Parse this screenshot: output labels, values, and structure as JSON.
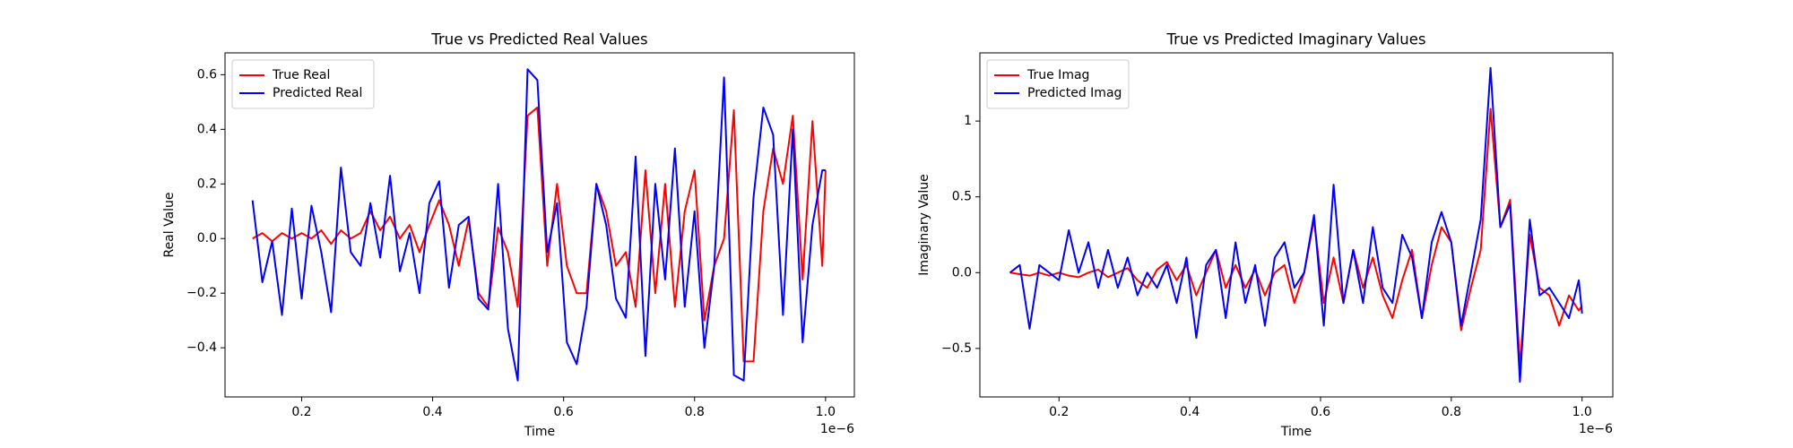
{
  "chart_data": [
    {
      "type": "line",
      "title": "True vs Predicted Real Values",
      "xlabel": "Time",
      "ylabel": "Real Value",
      "x_offset_label": "1e−6",
      "x": [
        0.125,
        0.14,
        0.155,
        0.17,
        0.185,
        0.2,
        0.215,
        0.23,
        0.245,
        0.26,
        0.275,
        0.29,
        0.305,
        0.32,
        0.335,
        0.35,
        0.365,
        0.38,
        0.395,
        0.41,
        0.425,
        0.44,
        0.455,
        0.47,
        0.485,
        0.5,
        0.515,
        0.53,
        0.545,
        0.56,
        0.575,
        0.59,
        0.605,
        0.62,
        0.635,
        0.65,
        0.665,
        0.68,
        0.695,
        0.71,
        0.725,
        0.74,
        0.755,
        0.77,
        0.785,
        0.8,
        0.815,
        0.83,
        0.845,
        0.86,
        0.875,
        0.89,
        0.905,
        0.92,
        0.935,
        0.95,
        0.965,
        0.98,
        0.995,
        1.0
      ],
      "series": [
        {
          "name": "True Real",
          "color": "#ff0000",
          "values": [
            0.0,
            0.02,
            -0.01,
            0.02,
            0.0,
            0.02,
            0.0,
            0.03,
            -0.02,
            0.03,
            0.0,
            0.02,
            0.1,
            0.03,
            0.08,
            0.0,
            0.05,
            -0.05,
            0.05,
            0.14,
            0.05,
            -0.1,
            0.07,
            -0.2,
            -0.25,
            0.04,
            -0.05,
            -0.25,
            0.45,
            0.48,
            -0.1,
            0.2,
            -0.1,
            -0.2,
            -0.2,
            0.2,
            0.1,
            -0.1,
            -0.05,
            -0.25,
            0.25,
            -0.2,
            0.2,
            -0.25,
            0.1,
            0.25,
            -0.3,
            -0.1,
            0.0,
            0.47,
            -0.45,
            -0.45,
            0.1,
            0.33,
            0.2,
            0.45,
            -0.15,
            0.43,
            -0.1,
            0.25
          ]
        },
        {
          "name": "Predicted Real",
          "color": "#0000ff",
          "values": [
            0.14,
            -0.16,
            -0.01,
            -0.28,
            0.11,
            -0.22,
            0.12,
            -0.05,
            -0.27,
            0.26,
            -0.05,
            -0.1,
            0.13,
            -0.07,
            0.23,
            -0.12,
            0.02,
            -0.2,
            0.13,
            0.21,
            -0.18,
            0.05,
            0.08,
            -0.22,
            -0.26,
            0.2,
            -0.33,
            -0.52,
            0.62,
            0.58,
            -0.05,
            0.13,
            -0.38,
            -0.46,
            -0.25,
            0.2,
            0.05,
            -0.22,
            -0.29,
            0.3,
            -0.43,
            0.2,
            -0.15,
            0.33,
            -0.25,
            0.1,
            -0.4,
            -0.1,
            0.59,
            -0.5,
            -0.52,
            0.15,
            0.48,
            0.38,
            -0.28,
            0.4,
            -0.38,
            0.05,
            0.25,
            0.25
          ]
        }
      ],
      "xlim": [
        0.083,
        1.044
      ],
      "ylim": [
        -0.58,
        0.68
      ],
      "xticks": [
        0.2,
        0.4,
        0.6,
        0.8,
        {
          "value": 1,
          "label": "1.0"
        }
      ],
      "yticks": [
        {
          "value": -0.4,
          "label": "−0.4"
        },
        {
          "value": -0.2,
          "label": "−0.2"
        },
        {
          "value": 0,
          "label": "0.0"
        },
        0.2,
        0.4,
        0.6
      ],
      "legend": "upper left"
    },
    {
      "type": "line",
      "title": "True vs Predicted Imaginary Values",
      "xlabel": "Time",
      "ylabel": "Imaginary Value",
      "x_offset_label": "1e−6",
      "x": [
        0.125,
        0.14,
        0.155,
        0.17,
        0.185,
        0.2,
        0.215,
        0.23,
        0.245,
        0.26,
        0.275,
        0.29,
        0.305,
        0.32,
        0.335,
        0.35,
        0.365,
        0.38,
        0.395,
        0.41,
        0.425,
        0.44,
        0.455,
        0.47,
        0.485,
        0.5,
        0.515,
        0.53,
        0.545,
        0.56,
        0.575,
        0.59,
        0.605,
        0.62,
        0.635,
        0.65,
        0.665,
        0.68,
        0.695,
        0.71,
        0.725,
        0.74,
        0.755,
        0.77,
        0.785,
        0.8,
        0.815,
        0.83,
        0.845,
        0.86,
        0.875,
        0.89,
        0.905,
        0.92,
        0.935,
        0.95,
        0.965,
        0.98,
        0.995,
        1.0
      ],
      "series": [
        {
          "name": "True Imag",
          "color": "#ff0000",
          "values": [
            0.0,
            -0.01,
            -0.02,
            0.0,
            -0.02,
            0.0,
            -0.02,
            -0.03,
            0.0,
            0.02,
            -0.03,
            0.0,
            0.03,
            -0.05,
            -0.1,
            0.02,
            0.07,
            -0.05,
            0.05,
            -0.15,
            0.0,
            0.15,
            -0.1,
            0.05,
            -0.1,
            0.02,
            -0.15,
            0.0,
            0.05,
            -0.2,
            0.0,
            0.35,
            -0.2,
            0.1,
            -0.2,
            0.15,
            -0.1,
            0.1,
            -0.15,
            -0.3,
            -0.05,
            0.15,
            -0.3,
            0.05,
            0.3,
            0.2,
            -0.38,
            -0.1,
            0.15,
            1.08,
            0.3,
            0.48,
            -0.62,
            0.25,
            -0.1,
            -0.15,
            -0.35,
            -0.15,
            -0.25,
            -0.22
          ]
        },
        {
          "name": "Predicted Imag",
          "color": "#0000ff",
          "values": [
            0.0,
            0.05,
            -0.37,
            0.05,
            0.0,
            -0.05,
            0.28,
            0.0,
            0.2,
            -0.1,
            0.15,
            -0.1,
            0.1,
            -0.15,
            0.0,
            -0.1,
            0.05,
            -0.2,
            0.1,
            -0.43,
            0.05,
            0.15,
            -0.3,
            0.2,
            -0.2,
            0.05,
            -0.35,
            0.1,
            0.2,
            -0.1,
            0.0,
            0.38,
            -0.35,
            0.58,
            -0.2,
            0.15,
            -0.2,
            0.3,
            -0.1,
            -0.2,
            0.25,
            0.1,
            -0.3,
            0.2,
            0.4,
            0.2,
            -0.35,
            0.0,
            0.35,
            1.35,
            0.3,
            0.45,
            -0.72,
            0.35,
            -0.15,
            -0.1,
            -0.2,
            -0.3,
            -0.05,
            -0.27
          ]
        }
      ],
      "xlim": [
        0.079,
        1.047
      ],
      "ylim": [
        -0.82,
        1.45
      ],
      "xticks": [
        0.2,
        0.4,
        0.6,
        0.8,
        {
          "value": 1,
          "label": "1.0"
        }
      ],
      "yticks": [
        {
          "value": -0.5,
          "label": "−0.5"
        },
        {
          "value": 0,
          "label": "0.0"
        },
        0.5,
        1.0
      ],
      "legend": "upper left"
    }
  ]
}
